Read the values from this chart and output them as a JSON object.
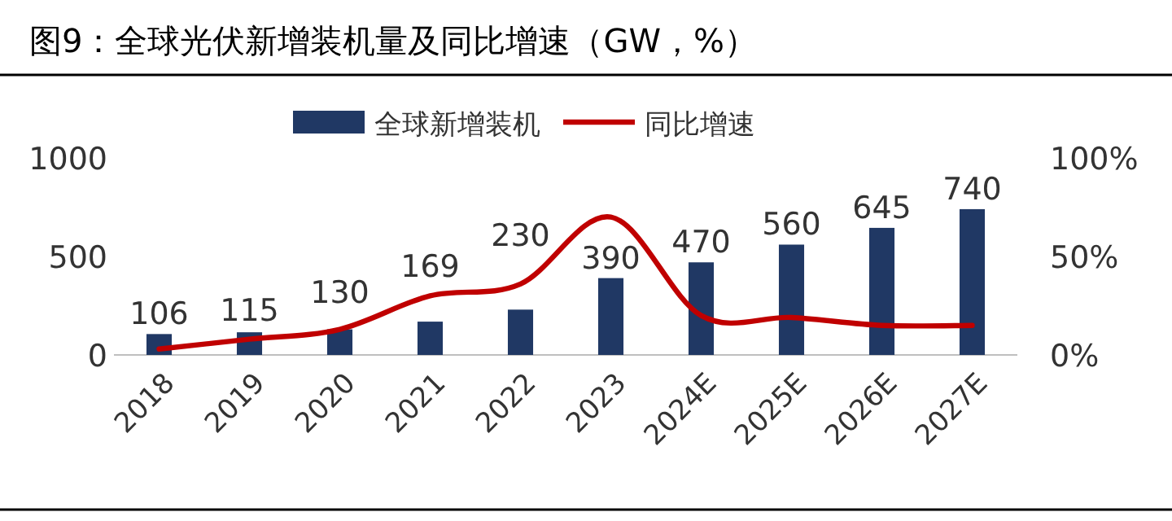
{
  "chart_data": {
    "type": "bar",
    "title": "图9：全球光伏新增装机量及同比增速（GW，%）",
    "categories": [
      "2018",
      "2019",
      "2020",
      "2021",
      "2022",
      "2023",
      "2024E",
      "2025E",
      "2026E",
      "2027E"
    ],
    "series": [
      {
        "name": "全球新增装机",
        "color": "#203864",
        "values": [
          106,
          115,
          130,
          169,
          230,
          390,
          470,
          560,
          645,
          740
        ],
        "value_labels": [
          "106",
          "115",
          "130",
          "169",
          "230",
          "390",
          "470",
          "560",
          "645",
          "740"
        ]
      },
      {
        "name": "同比增速",
        "type": "line",
        "axis": "y2",
        "color": "#c00000",
        "values": [
          3,
          8,
          13,
          30,
          36,
          70,
          20,
          19,
          15,
          15
        ]
      }
    ],
    "ylim": [
      0,
      1000
    ],
    "yticks": [
      0,
      500,
      1000
    ],
    "y2lim": [
      0,
      100
    ],
    "y2ticks": [
      {
        "value": 0,
        "label": "0%"
      },
      {
        "value": 50,
        "label": "50%"
      },
      {
        "value": 100,
        "label": "100%"
      }
    ],
    "legend": "top",
    "grid": false
  }
}
